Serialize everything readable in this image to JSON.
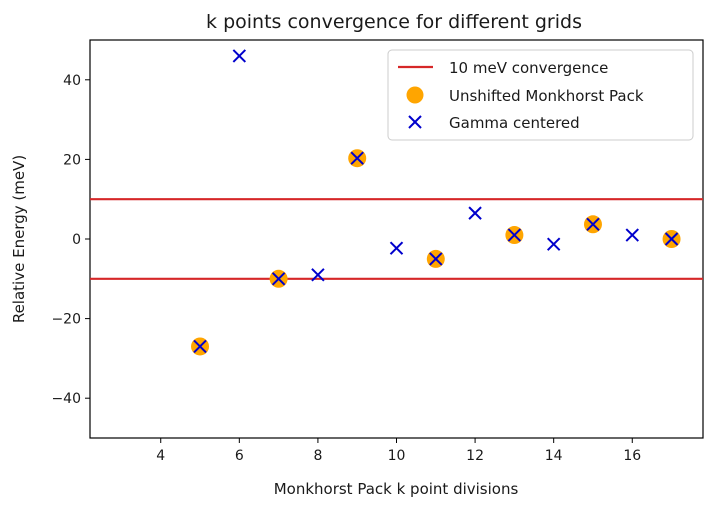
{
  "chart_data": {
    "type": "scatter",
    "title": "k points convergence for different grids",
    "xlabel": "Monkhorst Pack k point divisions",
    "ylabel": "Relative Energy (meV)",
    "xlim": [
      2.2,
      17.8
    ],
    "ylim": [
      -50,
      50
    ],
    "xticks": [
      4,
      6,
      8,
      10,
      12,
      14,
      16
    ],
    "yticks": [
      -40,
      -20,
      0,
      20,
      40
    ],
    "grid": false,
    "legend_position": "top-right",
    "reference_lines": {
      "name": "10 meV convergence",
      "color": "#d62728",
      "y": [
        10,
        -10
      ]
    },
    "series": [
      {
        "name": "Unshifted Monkhorst Pack",
        "marker": "circle",
        "color": "#ffa500",
        "x": [
          5,
          7,
          9,
          11,
          13,
          15,
          17
        ],
        "y": [
          -27,
          -10,
          20.3,
          -5,
          1,
          3.7,
          0
        ]
      },
      {
        "name": "Gamma centered",
        "marker": "x",
        "color": "#0000cc",
        "x": [
          5,
          6,
          7,
          8,
          9,
          10,
          11,
          12,
          13,
          14,
          15,
          16,
          17
        ],
        "y": [
          -27,
          46,
          -10,
          -9,
          20.3,
          -2.3,
          -5,
          6.5,
          1,
          -1.3,
          3.7,
          1,
          0
        ]
      }
    ]
  }
}
